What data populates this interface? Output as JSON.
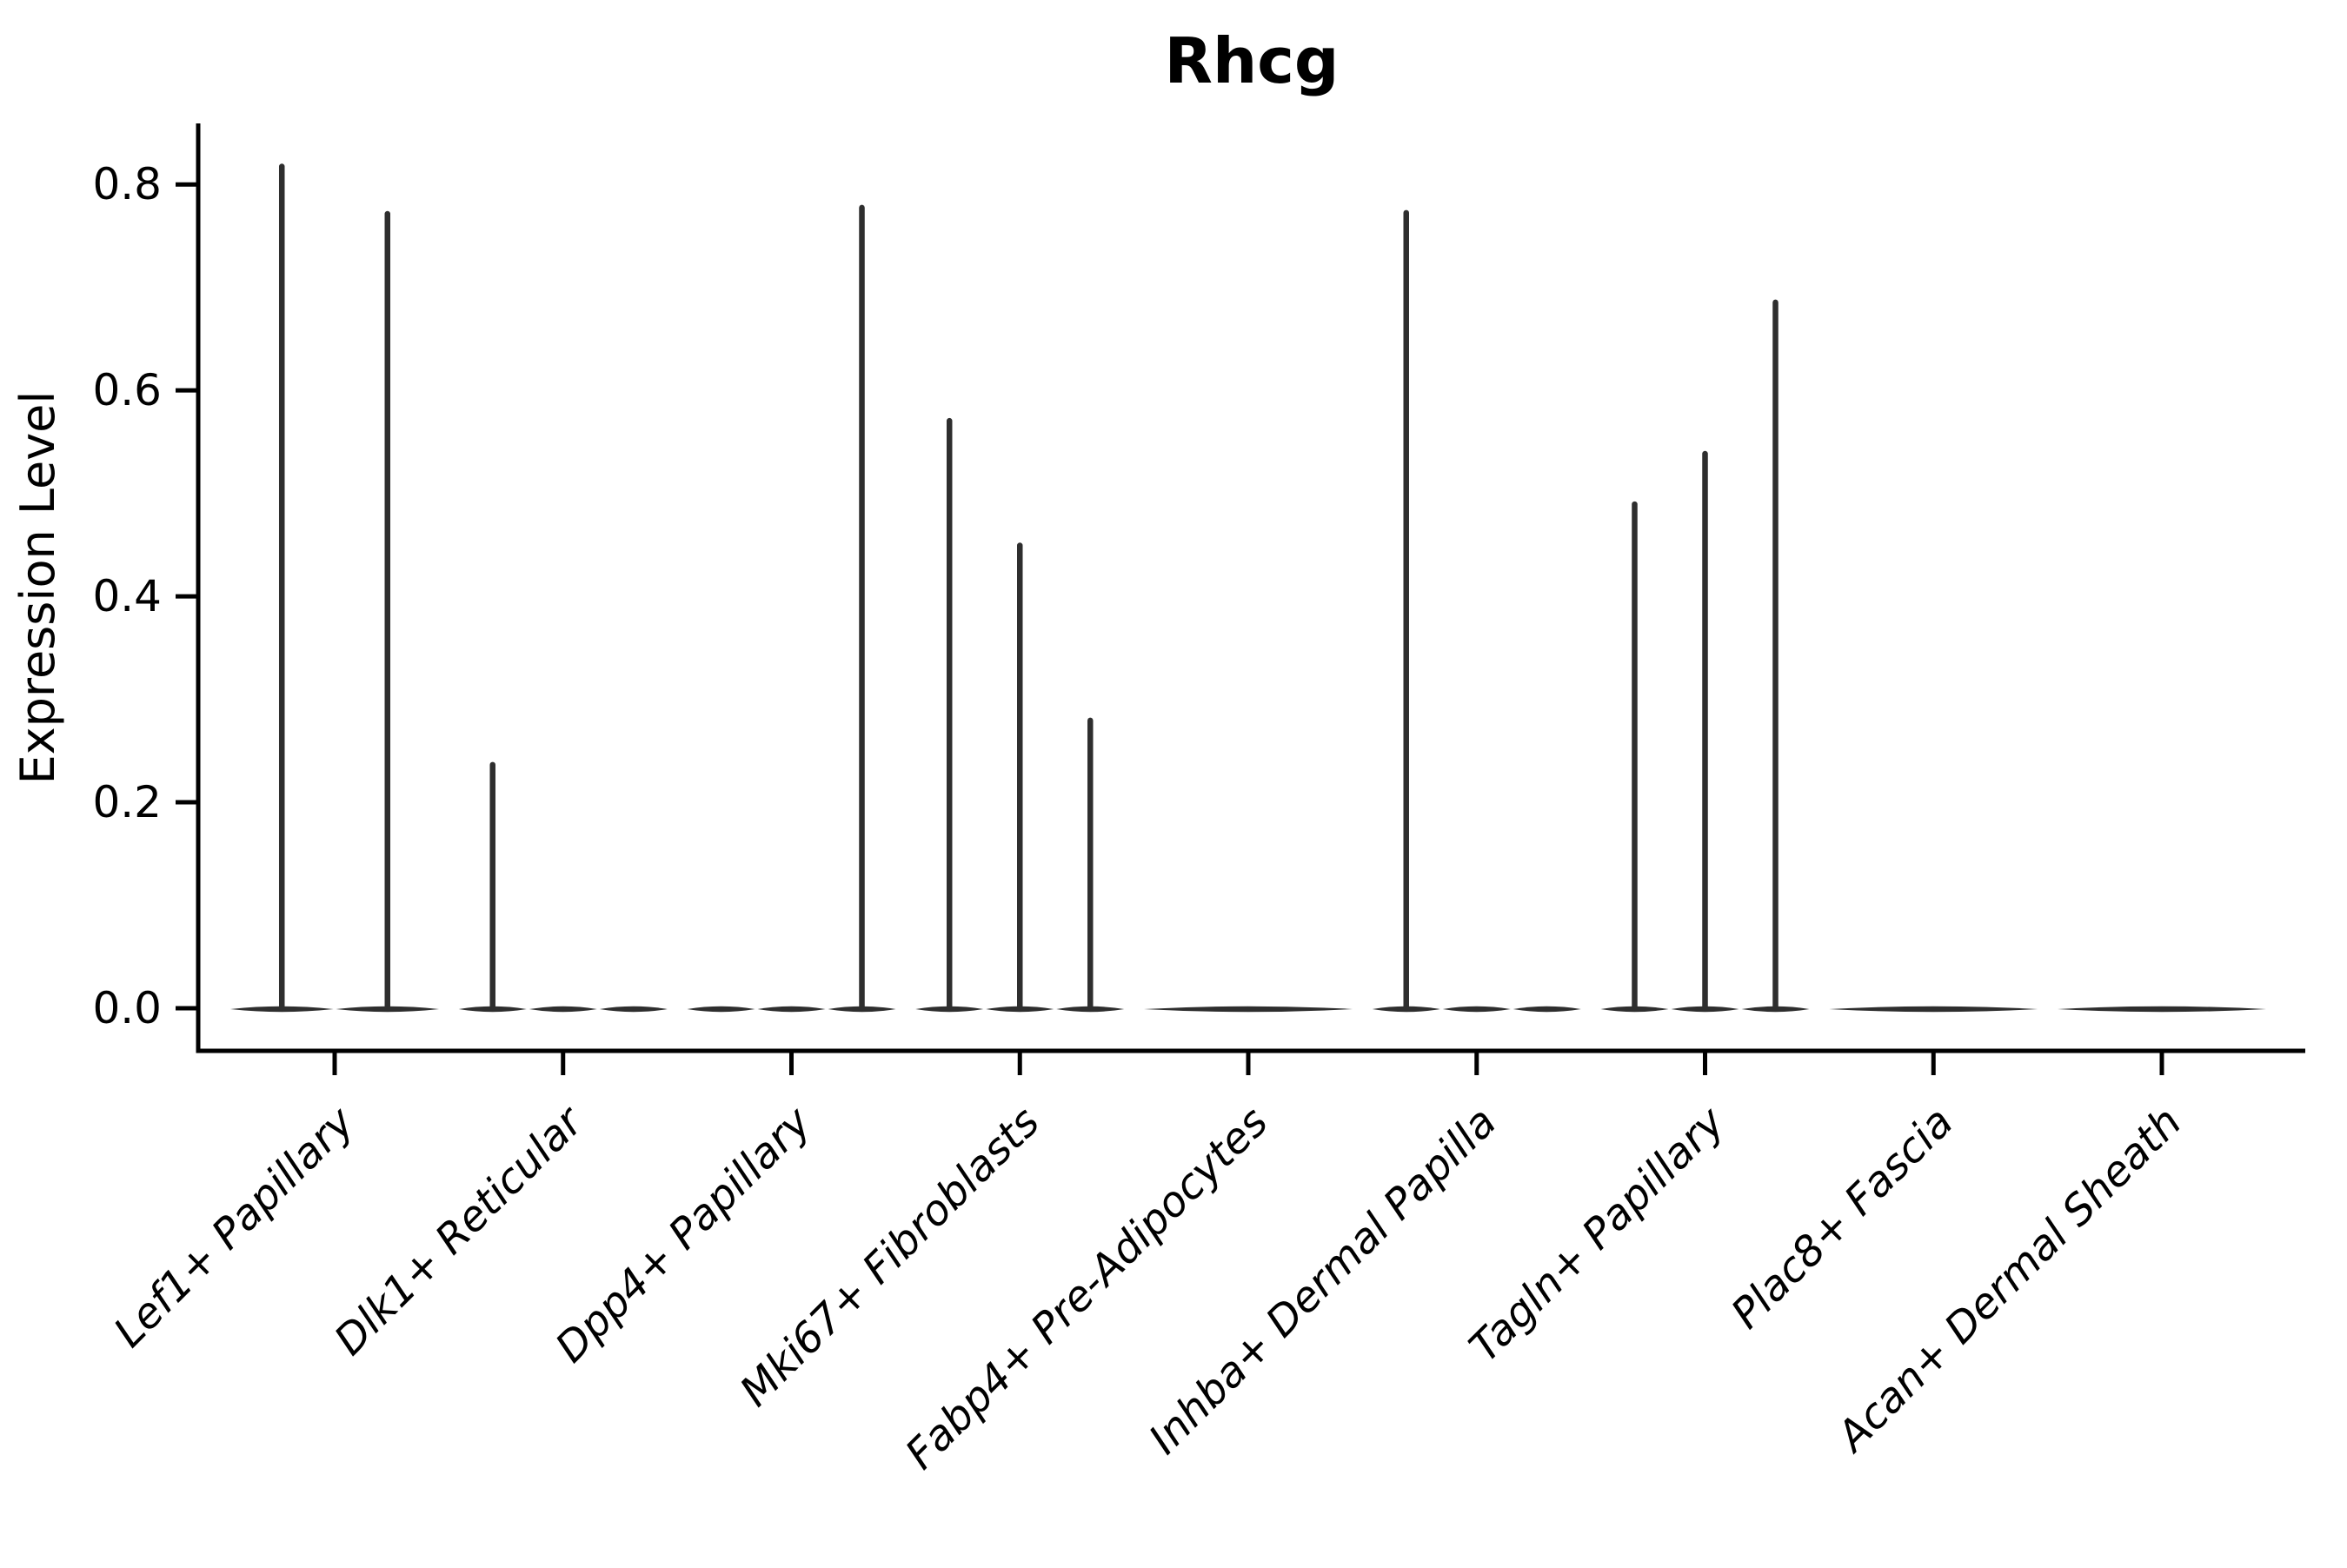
{
  "title": "Rhcg",
  "chart_data": {
    "type": "violin",
    "title": "Rhcg",
    "xlabel": "",
    "ylabel": "Expression Level",
    "yticks": [
      0.0,
      0.2,
      0.4,
      0.6,
      0.8
    ],
    "ylim": [
      -0.04,
      0.86
    ],
    "grid": false,
    "legend_position": "none",
    "violin_color": "#2e2e2e",
    "axis_color": "#000000",
    "categories": [
      "Lef1+ Papillary",
      "Dlk1+ Reticular",
      "Dpp4+ Papillary",
      "Mki67+ Fibroblasts",
      "Fabp4+ Pre-Adipocytes",
      "Inhba+ Dermal Papilla",
      "Tagln+ Papillary",
      "Plac8+ Fascia",
      "Acan+ Dermal Sheath"
    ],
    "groups": [
      {
        "category": "Lef1+ Papillary",
        "sub_violin_peaks": [
          0.82,
          0.774
        ]
      },
      {
        "category": "Dlk1+ Reticular",
        "sub_violin_peaks": [
          0.239,
          0,
          0
        ]
      },
      {
        "category": "Dpp4+ Papillary",
        "sub_violin_peaks": [
          0,
          0,
          0.78
        ]
      },
      {
        "category": "Mki67+ Fibroblasts",
        "sub_violin_peaks": [
          0.573,
          0.452,
          0.282
        ]
      },
      {
        "category": "Fabp4+ Pre-Adipocytes",
        "sub_violin_peaks": [
          0
        ]
      },
      {
        "category": "Inhba+ Dermal Papilla",
        "sub_violin_peaks": [
          0.775,
          0,
          0
        ]
      },
      {
        "category": "Tagln+ Papillary",
        "sub_violin_peaks": [
          0.492,
          0.541,
          0.688
        ]
      },
      {
        "category": "Plac8+ Fascia",
        "sub_violin_peaks": [
          0
        ]
      },
      {
        "category": "Acan+ Dermal Sheath",
        "sub_violin_peaks": [
          0
        ]
      }
    ]
  }
}
